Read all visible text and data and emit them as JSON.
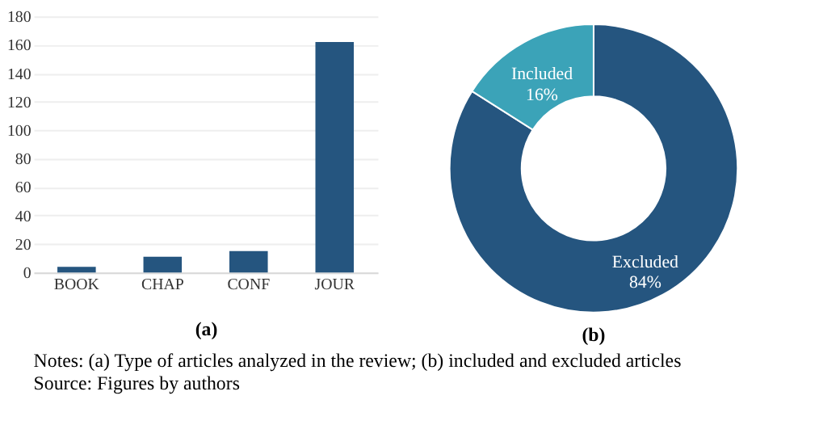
{
  "chart_data": [
    {
      "type": "bar",
      "categories": [
        "BOOK",
        "CHAP",
        "CONF",
        "JOUR"
      ],
      "values": [
        4,
        11,
        15,
        162
      ],
      "color": "#25557f",
      "ylim": [
        0,
        180
      ],
      "yticks": [
        0,
        20,
        40,
        60,
        80,
        100,
        120,
        140,
        160,
        180
      ],
      "grid": "y",
      "xlabel": "(a)",
      "annotations": [
        "Notes: (a) Type of articles analyzed in the review; (b) included and excluded articles",
        "Source: Figures by authors"
      ]
    },
    {
      "type": "donut",
      "categories": [
        "Excluded",
        "Included"
      ],
      "values": [
        84,
        16
      ],
      "colors": [
        "#25557f",
        "#3ba3b8"
      ],
      "value_labels": [
        "84%",
        "16%"
      ],
      "title": "(b)"
    }
  ]
}
